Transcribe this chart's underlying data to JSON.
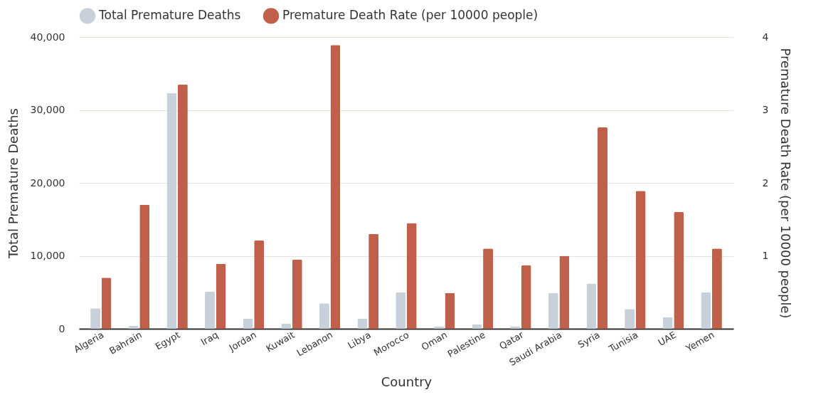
{
  "chart_data": {
    "type": "bar",
    "xlabel": "Country",
    "ylabel": "Total Premature Deaths",
    "y2label": "Premature Death Rate (per 10000 people)",
    "categories": [
      "Algeria",
      "Bahrain",
      "Egypt",
      "Iraq",
      "Jordan",
      "Kuwait",
      "Lebanon",
      "Libya",
      "Morocco",
      "Oman",
      "Palestine",
      "Qatar",
      "Saudi Arabia",
      "Syria",
      "Tunisia",
      "UAE",
      "Yemen"
    ],
    "series": [
      {
        "name": "Total Premature Deaths",
        "color": "#c8d0d9",
        "values": [
          2800,
          400,
          32300,
          5100,
          1400,
          700,
          3500,
          1400,
          5000,
          300,
          600,
          300,
          4900,
          6200,
          2700,
          1600,
          5000
        ]
      },
      {
        "name": "Premature Death Rate (per 10000 people)",
        "color": "#c0604a",
        "axis": "y2",
        "values": [
          0.7,
          1.7,
          3.35,
          0.89,
          1.21,
          0.95,
          3.89,
          1.3,
          1.45,
          0.49,
          1.1,
          0.87,
          1.0,
          2.76,
          1.89,
          1.6,
          1.1
        ]
      }
    ],
    "ylim": [
      0,
      40000
    ],
    "yticks": [
      0,
      {
        "value": 10000,
        "label": "10,000"
      },
      {
        "value": 20000,
        "label": "20,000"
      },
      {
        "value": 30000,
        "label": "30,000"
      },
      {
        "value": 40000,
        "label": "40,000"
      }
    ],
    "y2lim": [
      0,
      4
    ],
    "y2ticks": [
      1,
      2,
      3,
      4
    ],
    "grid": "y",
    "legend": "top"
  }
}
